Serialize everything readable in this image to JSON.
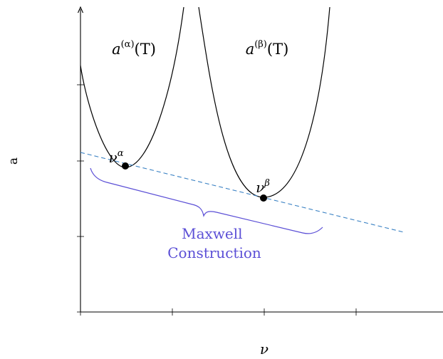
{
  "figure": {
    "axis": {
      "x_label": "ν",
      "y_label": "a"
    },
    "curves": [
      {
        "label_base": "a",
        "label_sup": "(α)",
        "label_arg": "(T)"
      },
      {
        "label_base": "a",
        "label_sup": "(β)",
        "label_arg": "(T)"
      }
    ],
    "points": [
      {
        "base": "ν",
        "sup": "α"
      },
      {
        "base": "ν",
        "sup": "β"
      }
    ],
    "brace_label": [
      "Maxwell",
      "Construction"
    ],
    "colors": {
      "axes": "#000000",
      "curves": "#000000",
      "tangent_line": "#3b82c4",
      "brace": "#5b4fd6",
      "points": "#000000"
    }
  }
}
